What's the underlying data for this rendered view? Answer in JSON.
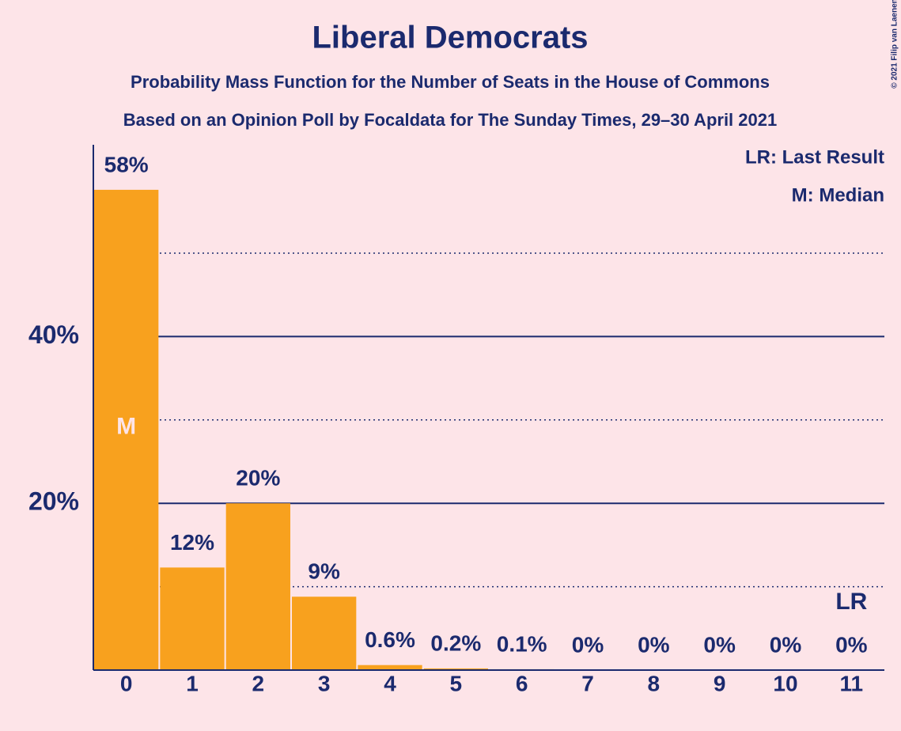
{
  "chart_data": {
    "type": "bar",
    "title": "Liberal Democrats",
    "subtitle": "Probability Mass Function for the Number of Seats in the House of Commons",
    "subtitle2": "Based on an Opinion Poll by Focaldata for The Sunday Times, 29–30 April 2021",
    "credit": "© 2021 Filip van Laenen",
    "legend": [
      "LR: Last Result",
      "M: Median"
    ],
    "categories": [
      "0",
      "1",
      "2",
      "3",
      "4",
      "5",
      "6",
      "7",
      "8",
      "9",
      "10",
      "11"
    ],
    "values": [
      57.6,
      12.3,
      20,
      8.8,
      0.6,
      0.2,
      0.1,
      0,
      0,
      0,
      0,
      0
    ],
    "value_labels": [
      "58%",
      "12%",
      "20%",
      "9%",
      "0.6%",
      "0.2%",
      "0.1%",
      "0%",
      "0%",
      "0%",
      "0%",
      "0%"
    ],
    "annotations": [
      {
        "text": "M",
        "category": "0"
      },
      {
        "text": "LR",
        "category": "11"
      }
    ],
    "color": "#f8a11e",
    "ylim": [
      0,
      63
    ],
    "yticks": [
      {
        "value": 20,
        "label": "20%"
      },
      {
        "value": 40,
        "label": "40%"
      }
    ],
    "minor_yticks": [
      10,
      30,
      50
    ],
    "grid": true
  }
}
